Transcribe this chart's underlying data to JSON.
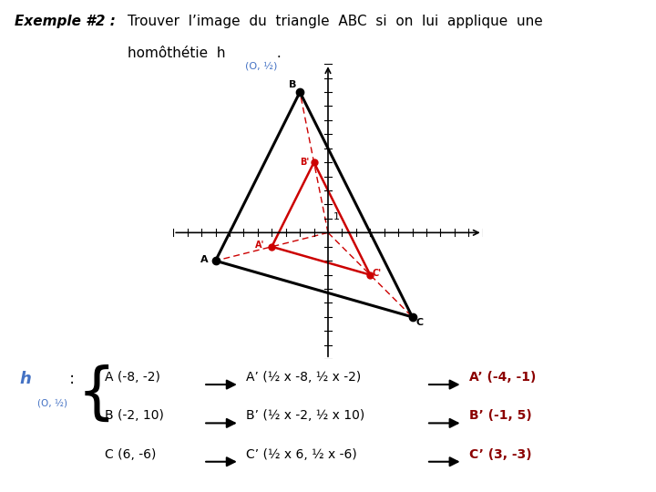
{
  "bg_color": "#ffffff",
  "A": [
    -8,
    -2
  ],
  "B": [
    -2,
    10
  ],
  "C": [
    6,
    -6
  ],
  "Ap": [
    -4,
    -1
  ],
  "Bp": [
    -1,
    5
  ],
  "Cp": [
    3,
    -3
  ],
  "abc_color": "#000000",
  "apbpcp_color": "#cc0000",
  "dashed_color": "#cc0000",
  "xlim": [
    -11,
    11
  ],
  "ylim": [
    -9,
    12
  ],
  "bottom_h_color": "#4472c4",
  "bottom_right_color": "#8b0000",
  "bottom_rows": [
    {
      "left": "A (-8, -2)",
      "mid": "A’ (½ x -8, ½ x -2)",
      "right": "A’ (-4, -1)"
    },
    {
      "left": "B (-2, 10)",
      "mid": "B’ (½ x -2, ½ x 10)",
      "right": "B’ (-1, 5)"
    },
    {
      "left": "C (6, -6)",
      "mid": "C’ (½ x 6, ½ x -6)",
      "right": "C’ (3, -3)"
    }
  ]
}
